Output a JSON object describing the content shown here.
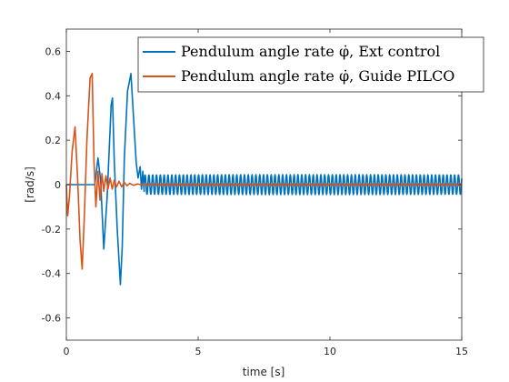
{
  "chart_data": {
    "type": "line",
    "title": "",
    "xlabel": "time [s]",
    "ylabel": "[rad/s]",
    "xlim": [
      0,
      15
    ],
    "ylim": [
      -0.7,
      0.7
    ],
    "xticks": [
      0,
      5,
      10,
      15
    ],
    "xtick_labels": [
      "0",
      "5",
      "10",
      "15"
    ],
    "yticks": [
      0.6,
      0.4,
      0.2,
      0,
      -0.2,
      -0.4,
      -0.6
    ],
    "ytick_labels": [
      "0.6",
      "0.4",
      "0.2",
      "0",
      "-0.2",
      "-0.4",
      "-0.6"
    ],
    "grid": false,
    "legend_position": "top-right",
    "series": [
      {
        "name": "Pendulum angle rate φ̇, Ext control",
        "color": "#0072BD",
        "segments": [
          {
            "kind": "points",
            "x": [
              0,
              1.08
            ],
            "y": [
              0,
              0
            ]
          },
          {
            "kind": "points",
            "x": [
              1.08,
              1.2,
              1.3,
              1.42,
              1.55,
              1.7,
              1.75,
              1.82,
              1.93,
              2.05,
              2.12,
              2.2,
              2.32,
              2.45,
              2.55,
              2.65,
              2.72,
              2.8,
              2.85,
              2.9,
              2.95
            ],
            "y": [
              0,
              0.12,
              0.02,
              -0.29,
              -0.05,
              0.36,
              0.39,
              0.1,
              -0.2,
              -0.45,
              -0.28,
              0.12,
              0.42,
              0.5,
              0.3,
              0.1,
              0.03,
              0.08,
              -0.02,
              0.06,
              -0.03
            ]
          },
          {
            "kind": "oscillation",
            "x_start": 2.95,
            "x_end": 15,
            "amplitude": 0.045,
            "period": 0.145
          }
        ]
      },
      {
        "name": "Pendulum angle rate φ̇, Guide PILCO",
        "color": "#D95319",
        "segments": [
          {
            "kind": "points",
            "x": [
              0,
              0.05,
              0.12,
              0.22,
              0.33,
              0.43,
              0.52,
              0.6,
              0.68,
              0.78,
              0.9,
              0.98,
              1.05,
              1.12,
              1.2,
              1.28,
              1.35,
              1.42,
              1.5,
              1.58,
              1.66,
              1.74,
              1.82,
              1.9,
              2.0,
              2.1,
              2.2,
              2.3,
              2.4,
              2.55,
              2.7,
              2.85,
              3.0
            ],
            "y": [
              0,
              -0.14,
              -0.05,
              0.15,
              0.26,
              0.02,
              -0.25,
              -0.38,
              -0.15,
              0.2,
              0.48,
              0.5,
              0.1,
              -0.1,
              0.06,
              -0.07,
              0.05,
              -0.03,
              0.04,
              -0.02,
              0.03,
              -0.02,
              0.02,
              -0.01,
              0.015,
              -0.01,
              0.01,
              -0.005,
              0.006,
              -0.003,
              0.003,
              0,
              0
            ]
          },
          {
            "kind": "oscillation",
            "x_start": 3.0,
            "x_end": 15,
            "amplitude": 0.004,
            "period": 0.145
          }
        ]
      }
    ]
  }
}
